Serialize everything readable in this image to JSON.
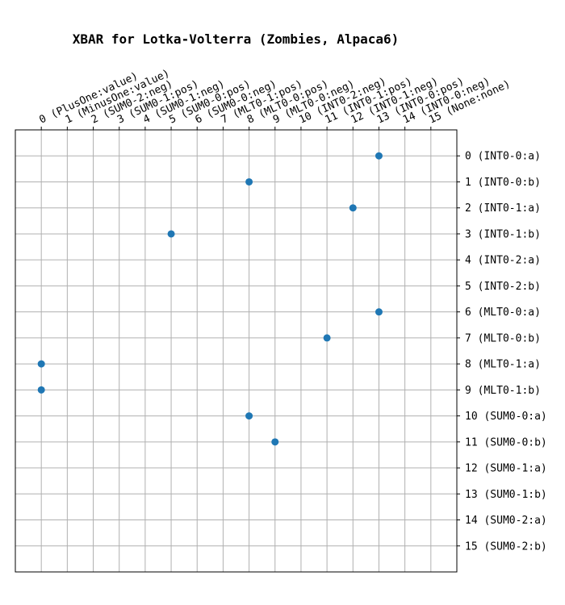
{
  "chart_data": {
    "type": "scatter",
    "title": "XBAR for Lotka-Volterra (Zombies, Alpaca6)",
    "xlabel": "",
    "ylabel": "",
    "grid": true,
    "xlim": [
      -1,
      16
    ],
    "ylim": [
      -1,
      16
    ],
    "y_inverted": true,
    "x_tick_position": "top",
    "y_tick_position": "right",
    "x_tick_labels": [
      "0 (PlusOne:value)",
      "1 (MinusOne:value)",
      "2 (SUM0-2:neg)",
      "3 (SUM0-1:pos)",
      "4 (SUM0-1:neg)",
      "5 (SUM0-0:pos)",
      "6 (SUM0-0:neg)",
      "7 (MLT0-1:pos)",
      "8 (MLT0-0:pos)",
      "9 (MLT0-0:neg)",
      "10 (INT0-2:neg)",
      "11 (INT0-1:pos)",
      "12 (INT0-1:neg)",
      "13 (INT0-0:pos)",
      "14 (INT0-0:neg)",
      "15 (None:none)"
    ],
    "y_tick_labels": [
      "0 (INT0-0:a)",
      "1 (INT0-0:b)",
      "2 (INT0-1:a)",
      "3 (INT0-1:b)",
      "4 (INT0-2:a)",
      "5 (INT0-2:b)",
      "6 (MLT0-0:a)",
      "7 (MLT0-0:b)",
      "8 (MLT0-1:a)",
      "9 (MLT0-1:b)",
      "10 (SUM0-0:a)",
      "11 (SUM0-0:b)",
      "12 (SUM0-1:a)",
      "13 (SUM0-1:b)",
      "14 (SUM0-2:a)",
      "15 (SUM0-2:b)"
    ],
    "marker_color": "#1f77b4",
    "points": [
      {
        "x": 13,
        "y": 0
      },
      {
        "x": 8,
        "y": 1
      },
      {
        "x": 12,
        "y": 2
      },
      {
        "x": 5,
        "y": 3
      },
      {
        "x": 13,
        "y": 6
      },
      {
        "x": 11,
        "y": 7
      },
      {
        "x": 0,
        "y": 8
      },
      {
        "x": 0,
        "y": 9
      },
      {
        "x": 8,
        "y": 10
      },
      {
        "x": 9,
        "y": 11
      }
    ]
  }
}
